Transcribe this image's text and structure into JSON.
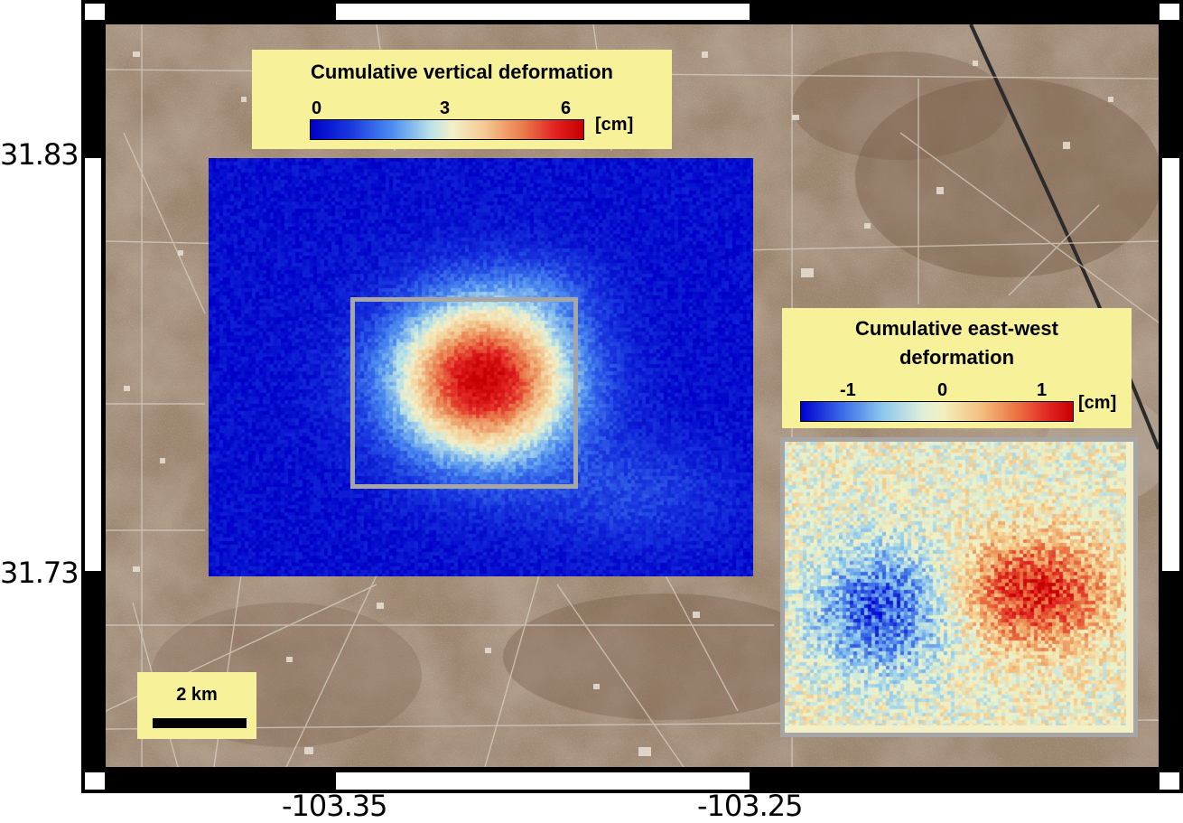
{
  "axes": {
    "y_ticks": [
      "31.83",
      "31.73"
    ],
    "x_ticks": [
      "-103.35",
      "-103.25"
    ]
  },
  "vertical_legend": {
    "title": "Cumulative vertical deformation",
    "ticks": [
      "0",
      "3",
      "6"
    ],
    "unit": "[cm]",
    "range": [
      0,
      6
    ]
  },
  "ew_legend": {
    "title_line1": "Cumulative east-west",
    "title_line2": "deformation",
    "ticks": [
      "-1",
      "0",
      "1"
    ],
    "unit": "[cm]",
    "range": [
      -1,
      1
    ]
  },
  "scale_bar": {
    "label": "2 km"
  },
  "colors": {
    "frame": "#000000",
    "legend_bg": "#f7f29a",
    "inset_border": "#a6a6a6",
    "deformation_low": "#0000c8",
    "deformation_high": "#d40000"
  }
}
